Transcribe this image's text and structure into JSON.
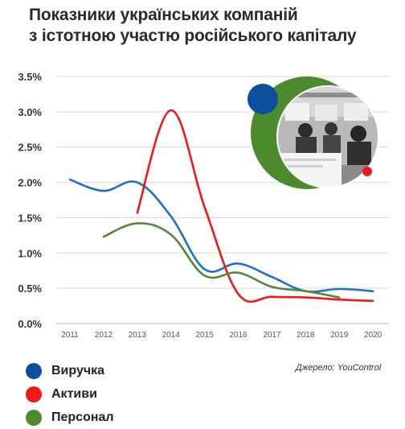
{
  "title_line1": "Показники українських компаній",
  "title_line2": "з істотною участю російського капіталу",
  "source": "Джерело: YouControl",
  "chart_data": {
    "type": "line",
    "title": "Показники українських компаній з істотною участю російського капіталу",
    "x": [
      "2011",
      "2012",
      "2013",
      "2014",
      "2015",
      "2016",
      "2017",
      "2018",
      "2019",
      "2020"
    ],
    "y_ticks": [
      "0.0%",
      "0.5%",
      "1.0%",
      "1.5%",
      "2.0%",
      "2.5%",
      "3.0%",
      "3.5%"
    ],
    "ylim": [
      0,
      3.5
    ],
    "grid": true,
    "legend_placement": "bottom-left",
    "series": [
      {
        "name": "Виручка",
        "color": "#1a72c4",
        "legend_color": "#0b4f9e",
        "values": [
          2.04,
          1.88,
          2.0,
          1.52,
          0.77,
          0.85,
          0.66,
          0.46,
          0.49,
          0.46
        ]
      },
      {
        "name": "Активи",
        "color": "#f01818",
        "legend_color": "#f01818",
        "values": [
          null,
          null,
          1.57,
          3.02,
          1.65,
          0.42,
          0.38,
          0.37,
          0.34,
          0.32
        ]
      },
      {
        "name": "Персонал",
        "color": "#55863a",
        "legend_color": "#4f8a2c",
        "values": [
          null,
          1.23,
          1.42,
          1.26,
          0.68,
          0.72,
          0.52,
          0.46,
          0.37,
          null
        ]
      }
    ]
  }
}
